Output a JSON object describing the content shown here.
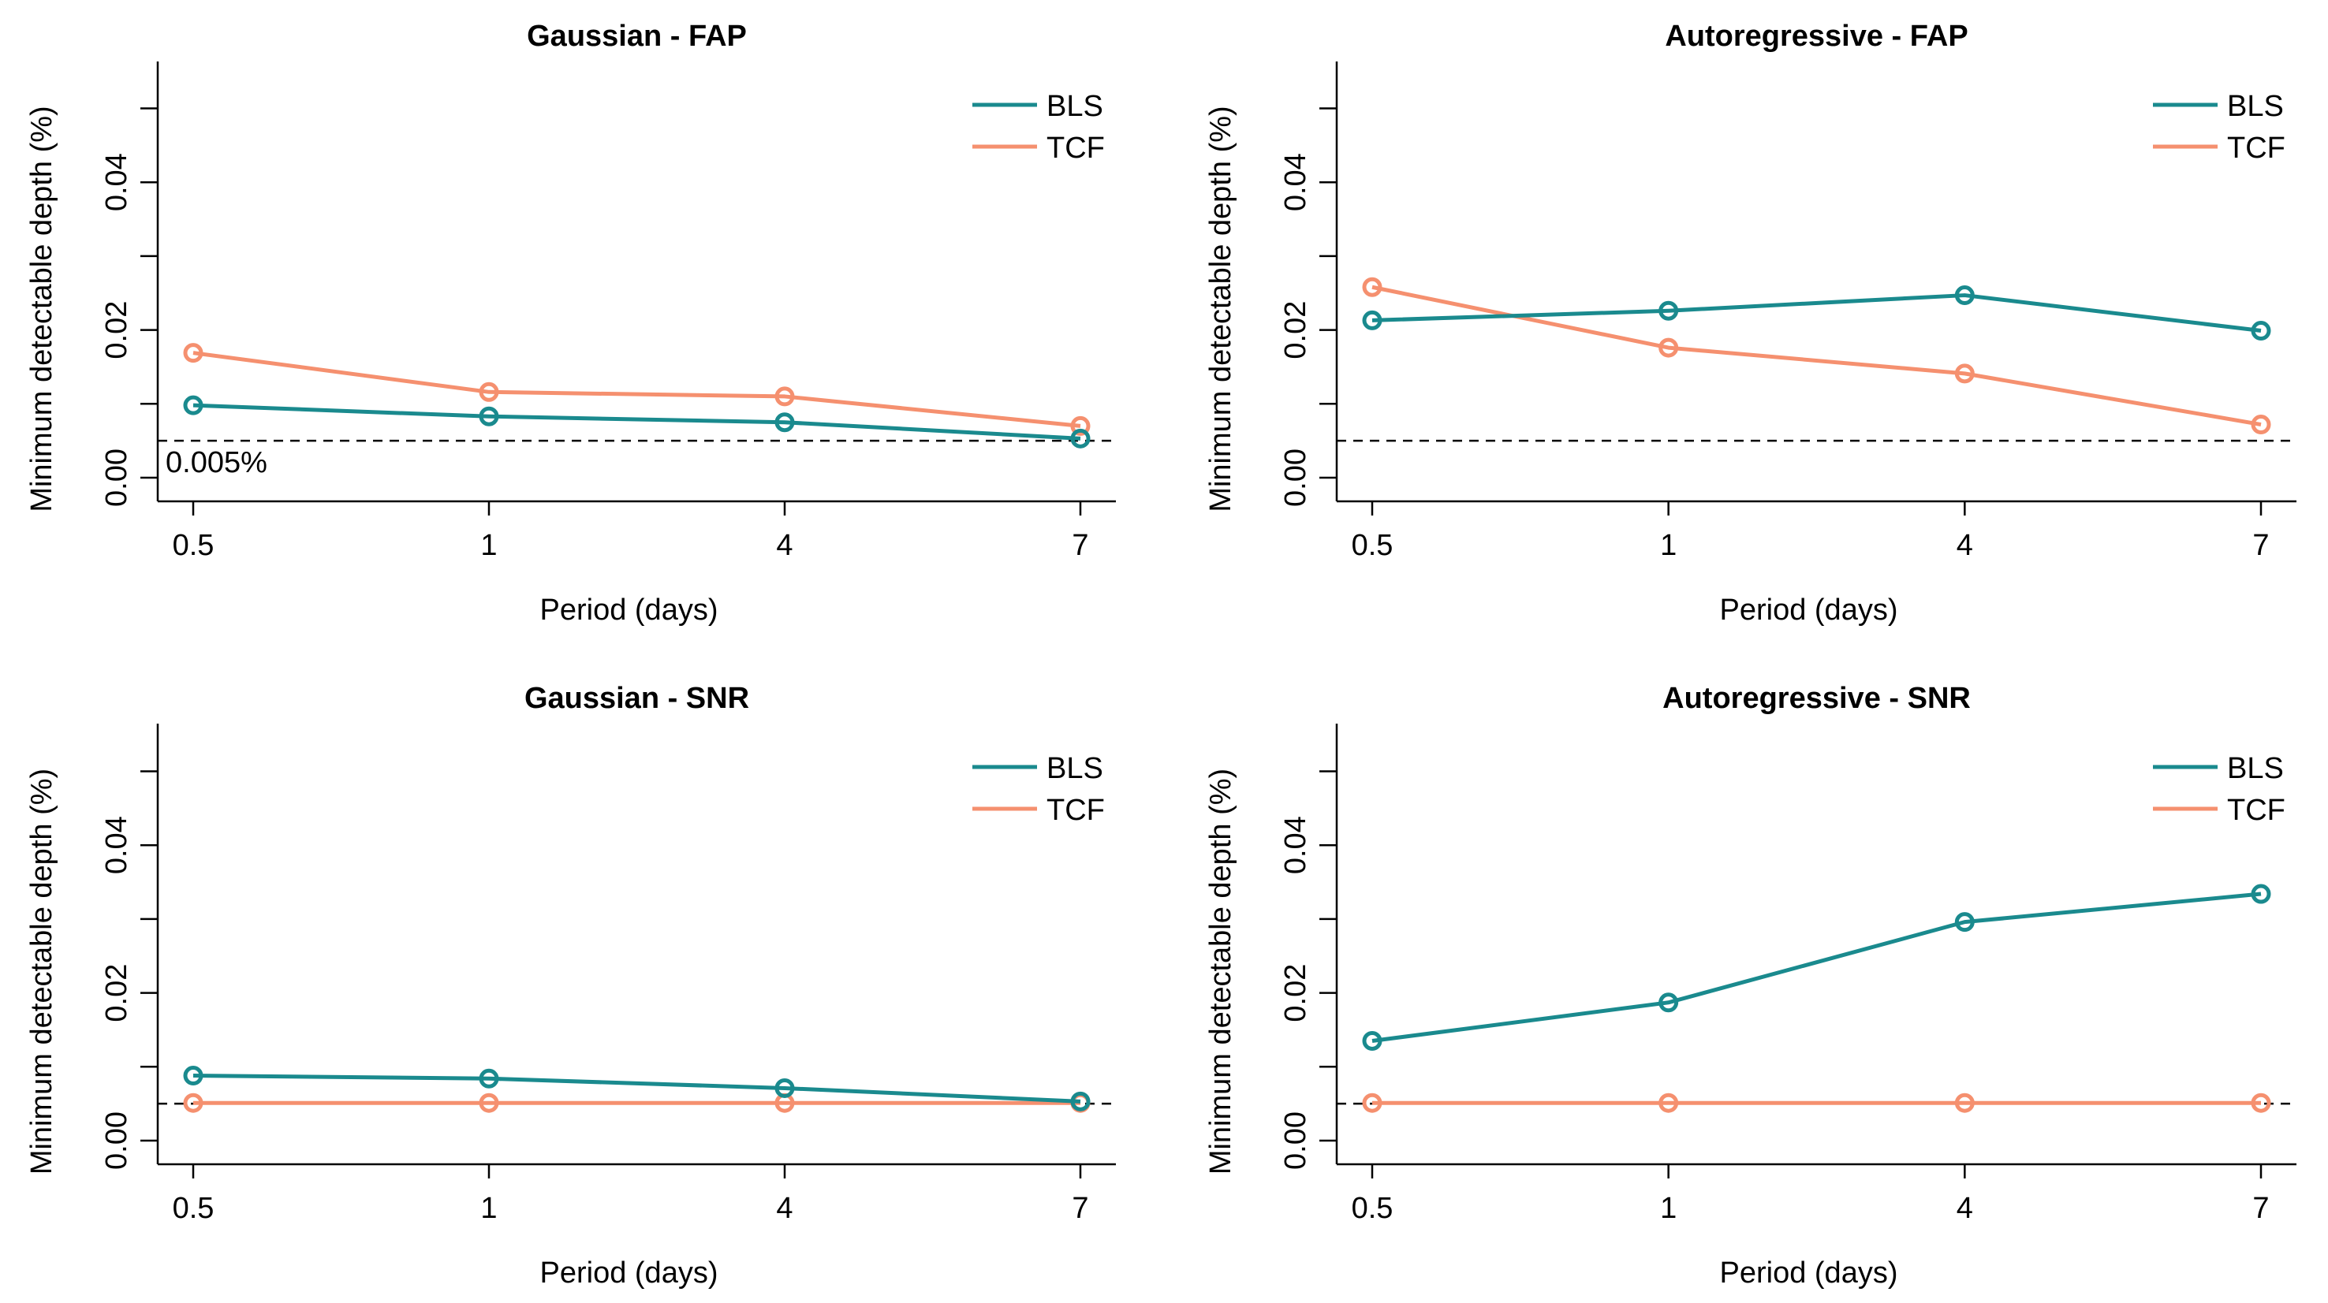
{
  "colors": {
    "BLS": "#1a8a8e",
    "TCF": "#f5906f",
    "reference": "#000000"
  },
  "chart_data": [
    {
      "type": "line",
      "title": "Gaussian - FAP",
      "xlabel": "Period (days)",
      "ylabel": "Minimum detectable depth (%)",
      "categories": [
        "0.5",
        "1",
        "4",
        "7"
      ],
      "ylim": [
        0,
        0.056
      ],
      "yticks": [
        0,
        0.01,
        0.02,
        0.03,
        0.04,
        0.05
      ],
      "ytick_labels": [
        "0.00",
        "",
        "0.02",
        "",
        "0.04",
        ""
      ],
      "legend_position": "top-right",
      "reference_line": {
        "value": 0.005,
        "style": "dashed",
        "label": "0.005%"
      },
      "series": [
        {
          "name": "BLS",
          "color": "#1a8a8e",
          "values": [
            0.0098,
            0.0083,
            0.0075,
            0.0053
          ]
        },
        {
          "name": "TCF",
          "color": "#f5906f",
          "values": [
            0.0169,
            0.0116,
            0.011,
            0.007
          ]
        }
      ]
    },
    {
      "type": "line",
      "title": "Autoregressive - FAP",
      "xlabel": "Period (days)",
      "ylabel": "Minimum detectable depth (%)",
      "categories": [
        "0.5",
        "1",
        "4",
        "7"
      ],
      "ylim": [
        0,
        0.056
      ],
      "yticks": [
        0,
        0.01,
        0.02,
        0.03,
        0.04,
        0.05
      ],
      "ytick_labels": [
        "0.00",
        "",
        "0.02",
        "",
        "0.04",
        ""
      ],
      "legend_position": "top-right",
      "reference_line": {
        "value": 0.005,
        "style": "dashed",
        "label": ""
      },
      "series": [
        {
          "name": "BLS",
          "color": "#1a8a8e",
          "values": [
            0.0213,
            0.0226,
            0.0247,
            0.0199
          ]
        },
        {
          "name": "TCF",
          "color": "#f5906f",
          "values": [
            0.0258,
            0.0176,
            0.0141,
            0.0072
          ]
        }
      ]
    },
    {
      "type": "line",
      "title": "Gaussian - SNR",
      "xlabel": "Period (days)",
      "ylabel": "Minimum detectable depth (%)",
      "categories": [
        "0.5",
        "1",
        "4",
        "7"
      ],
      "ylim": [
        0,
        0.056
      ],
      "yticks": [
        0,
        0.01,
        0.02,
        0.03,
        0.04,
        0.05
      ],
      "ytick_labels": [
        "0.00",
        "",
        "0.02",
        "",
        "0.04",
        ""
      ],
      "legend_position": "top-right",
      "reference_line": {
        "value": 0.005,
        "style": "dashed",
        "label": ""
      },
      "series": [
        {
          "name": "BLS",
          "color": "#1a8a8e",
          "values": [
            0.0088,
            0.0084,
            0.0071,
            0.0053
          ]
        },
        {
          "name": "TCF",
          "color": "#f5906f",
          "values": [
            0.0051,
            0.0051,
            0.0051,
            0.0051
          ]
        }
      ]
    },
    {
      "type": "line",
      "title": "Autoregressive - SNR",
      "xlabel": "Period (days)",
      "ylabel": "Minimum detectable depth (%)",
      "categories": [
        "0.5",
        "1",
        "4",
        "7"
      ],
      "ylim": [
        0,
        0.056
      ],
      "yticks": [
        0,
        0.01,
        0.02,
        0.03,
        0.04,
        0.05
      ],
      "ytick_labels": [
        "0.00",
        "",
        "0.02",
        "",
        "0.04",
        ""
      ],
      "legend_position": "top-right",
      "reference_line": {
        "value": 0.005,
        "style": "dashed",
        "label": ""
      },
      "series": [
        {
          "name": "BLS",
          "color": "#1a8a8e",
          "values": [
            0.0135,
            0.0187,
            0.0296,
            0.0334
          ]
        },
        {
          "name": "TCF",
          "color": "#f5906f",
          "values": [
            0.0051,
            0.0051,
            0.0051,
            0.0051
          ]
        }
      ]
    }
  ]
}
